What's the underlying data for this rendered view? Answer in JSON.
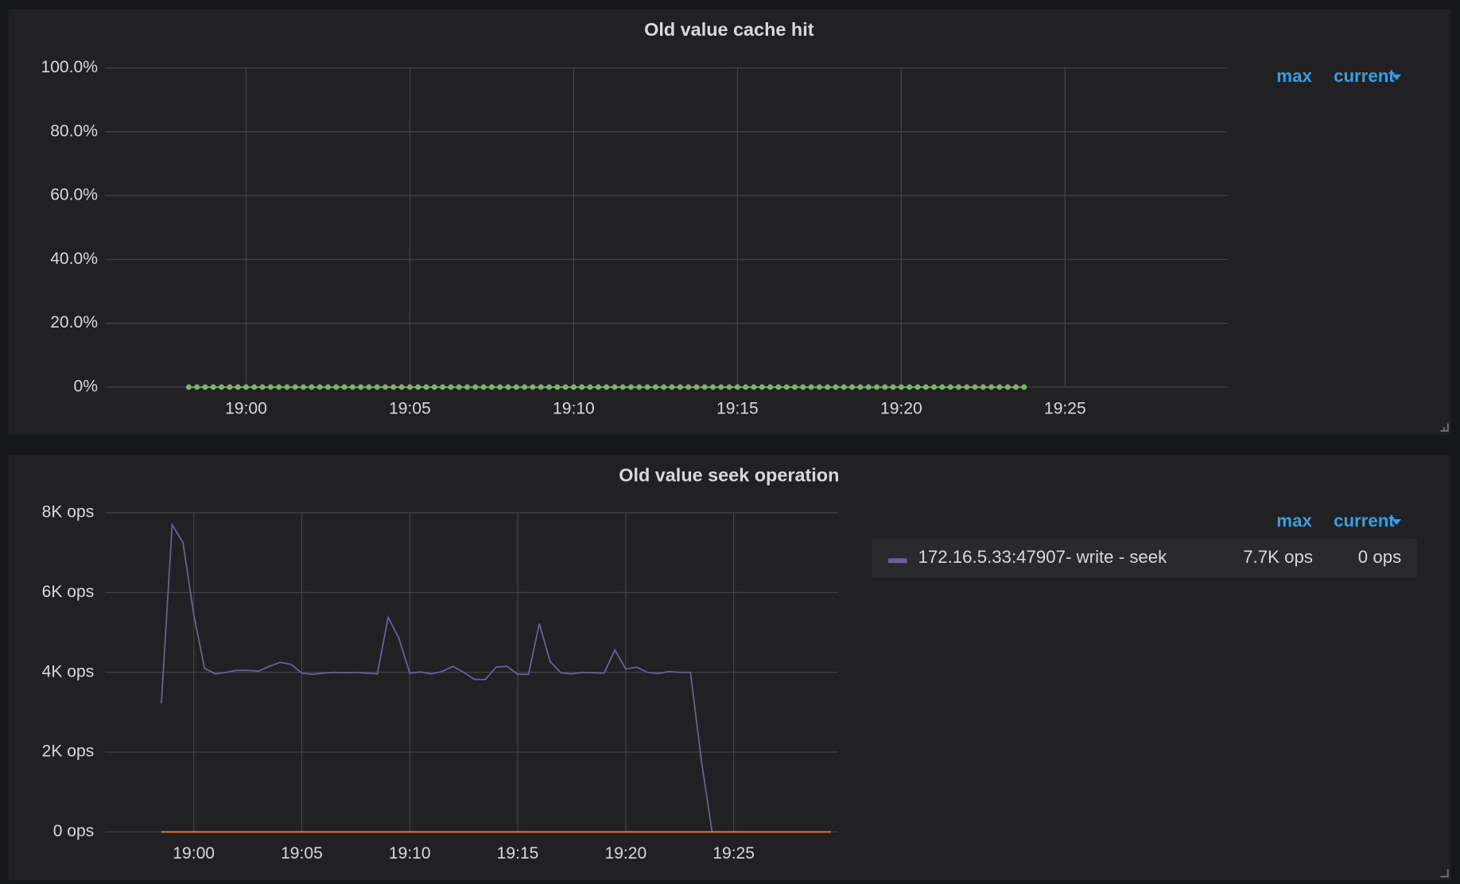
{
  "chart_data": [
    {
      "type": "line",
      "title": "Old value cache hit",
      "xlim": [
        1135.7,
        1169.95
      ],
      "xticks": [
        {
          "value": 1140,
          "label": "19:00"
        },
        {
          "value": 1145,
          "label": "19:05"
        },
        {
          "value": 1150,
          "label": "19:10"
        },
        {
          "value": 1155,
          "label": "19:15"
        },
        {
          "value": 1160,
          "label": "19:20"
        },
        {
          "value": 1165,
          "label": "19:25"
        }
      ],
      "ylim": [
        0,
        100
      ],
      "yticks": [
        {
          "value": 0,
          "label": "0%"
        },
        {
          "value": 20,
          "label": "20.0%"
        },
        {
          "value": 40,
          "label": "40.0%"
        },
        {
          "value": 60,
          "label": "60.0%"
        },
        {
          "value": 80,
          "label": "80.0%"
        },
        {
          "value": 100,
          "label": "100.0%"
        }
      ],
      "grid": true,
      "points": true,
      "legend_columns": [
        "max",
        "current"
      ],
      "series": [
        {
          "color": "#7eb26d",
          "x": [
            1138.25,
            1138.5,
            1138.75,
            1139,
            1139.25,
            1139.5,
            1139.75,
            1140,
            1140.25,
            1140.5,
            1140.75,
            1141,
            1141.25,
            1141.5,
            1141.75,
            1142,
            1142.25,
            1142.5,
            1142.75,
            1143,
            1143.25,
            1143.5,
            1143.75,
            1144,
            1144.25,
            1144.5,
            1144.75,
            1145,
            1145.25,
            1145.5,
            1145.75,
            1146,
            1146.25,
            1146.5,
            1146.75,
            1147,
            1147.25,
            1147.5,
            1147.75,
            1148,
            1148.25,
            1148.5,
            1148.75,
            1149,
            1149.25,
            1149.5,
            1149.75,
            1150,
            1150.25,
            1150.5,
            1150.75,
            1151,
            1151.25,
            1151.5,
            1151.75,
            1152,
            1152.25,
            1152.5,
            1152.75,
            1153,
            1153.25,
            1153.5,
            1153.75,
            1154,
            1154.25,
            1154.5,
            1154.75,
            1155,
            1155.25,
            1155.5,
            1155.75,
            1156,
            1156.25,
            1156.5,
            1156.75,
            1157,
            1157.25,
            1157.5,
            1157.75,
            1158,
            1158.25,
            1158.5,
            1158.75,
            1159,
            1159.25,
            1159.5,
            1159.75,
            1160,
            1160.25,
            1160.5,
            1160.75,
            1161,
            1161.25,
            1161.5,
            1161.75,
            1162,
            1162.25,
            1162.5,
            1162.75,
            1163,
            1163.25,
            1163.5,
            1163.75
          ],
          "values": [
            0,
            0,
            0,
            0,
            0,
            0,
            0,
            0,
            0,
            0,
            0,
            0,
            0,
            0,
            0,
            0,
            0,
            0,
            0,
            0,
            0,
            0,
            0,
            0,
            0,
            0,
            0,
            0,
            0,
            0,
            0,
            0,
            0,
            0,
            0,
            0,
            0,
            0,
            0,
            0,
            0,
            0,
            0,
            0,
            0,
            0,
            0,
            0,
            0,
            0,
            0,
            0,
            0,
            0,
            0,
            0,
            0,
            0,
            0,
            0,
            0,
            0,
            0,
            0,
            0,
            0,
            0,
            0,
            0,
            0,
            0,
            0,
            0,
            0,
            0,
            0,
            0,
            0,
            0,
            0,
            0,
            0,
            0,
            0,
            0,
            0,
            0,
            0,
            0,
            0,
            0,
            0,
            0,
            0,
            0,
            0,
            0,
            0,
            0,
            0,
            0,
            0,
            0
          ]
        }
      ]
    },
    {
      "type": "line",
      "title": "Old value seek operation",
      "xlim": [
        1135.9,
        1169.83
      ],
      "xticks": [
        {
          "value": 1140,
          "label": "19:00"
        },
        {
          "value": 1145,
          "label": "19:05"
        },
        {
          "value": 1150,
          "label": "19:10"
        },
        {
          "value": 1155,
          "label": "19:15"
        },
        {
          "value": 1160,
          "label": "19:20"
        },
        {
          "value": 1165,
          "label": "19:25"
        }
      ],
      "ylim": [
        0,
        8000
      ],
      "yticks": [
        {
          "value": 0,
          "label": "0 ops"
        },
        {
          "value": 2000,
          "label": "2K ops"
        },
        {
          "value": 4000,
          "label": "4K ops"
        },
        {
          "value": 6000,
          "label": "6K ops"
        },
        {
          "value": 8000,
          "label": "8K ops"
        }
      ],
      "grid": true,
      "points": false,
      "legend_columns": [
        "max",
        "current"
      ],
      "series": [
        {
          "name": "172.16.5.33:47907- write - seek",
          "color": "#705da0",
          "legend_stats": [
            {
              "value": 7700,
              "label": "7.7K ops"
            },
            {
              "value": 0,
              "label": "0 ops"
            }
          ],
          "x": [
            1138.5,
            1139,
            1139.5,
            1140,
            1140.5,
            1141,
            1141.5,
            1142,
            1142.5,
            1143,
            1143.5,
            1144,
            1144.5,
            1145,
            1145.5,
            1146,
            1146.5,
            1147,
            1147.5,
            1148,
            1148.5,
            1149,
            1149.5,
            1150,
            1150.5,
            1151,
            1151.5,
            1152,
            1152.5,
            1153,
            1153.5,
            1154,
            1154.5,
            1155,
            1155.5,
            1156,
            1156.5,
            1157,
            1157.5,
            1158,
            1158.5,
            1159,
            1159.5,
            1160,
            1160.5,
            1161,
            1161.5,
            1162,
            1162.5,
            1163,
            1163.5,
            1164
          ],
          "values": [
            3220,
            7700,
            7250,
            5450,
            4100,
            3960,
            4000,
            4050,
            4050,
            4030,
            4150,
            4250,
            4200,
            3980,
            3950,
            3980,
            4000,
            3990,
            4000,
            3980,
            3960,
            5380,
            4850,
            3980,
            4010,
            3960,
            4020,
            4150,
            4000,
            3820,
            3820,
            4130,
            4150,
            3950,
            3950,
            5220,
            4270,
            3990,
            3960,
            4000,
            3990,
            3980,
            4560,
            4080,
            4130,
            4000,
            3970,
            4020,
            4000,
            4000,
            1800,
            0
          ]
        },
        {
          "color": "#ef843c",
          "x": [
            1138.5,
            1169.5
          ],
          "values": [
            0,
            0
          ]
        }
      ]
    }
  ]
}
